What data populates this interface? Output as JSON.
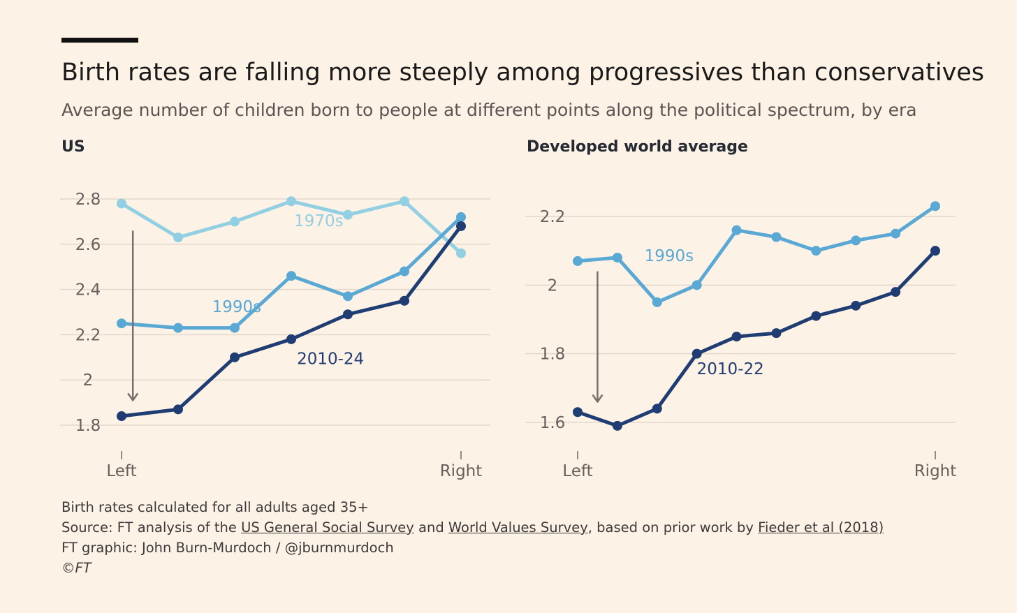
{
  "header": {
    "title": "Birth rates are falling more steeply among progressives than conservatives",
    "subtitle": "Average number of children born to people at different points along the political spectrum, by era"
  },
  "footer": {
    "note": "Birth rates calculated for all adults aged 35+",
    "source_prefix": "Source: FT analysis of the ",
    "source_link1": "US General Social Survey",
    "source_and": " and ",
    "source_link2": "World Values Survey",
    "source_mid": ", based on prior work by ",
    "source_link3": "Fieder et al (2018)",
    "graphic": "FT graphic: John Burn-Murdoch / @jburnmurdoch",
    "copyright": "©FT"
  },
  "colors": {
    "1970s": "#93cfe3",
    "1990s": "#5aa8d4",
    "2010s": "#1f3d72",
    "arrow": "#77706b",
    "grid": "#e3d8cc"
  },
  "chart_data": [
    {
      "type": "line",
      "title": "US",
      "x": [
        1,
        2,
        3,
        4,
        5,
        6,
        7
      ],
      "xticks": [
        {
          "x": 1,
          "label": "Left"
        },
        {
          "x": 7,
          "label": "Right"
        }
      ],
      "yticks": [
        1.8,
        2,
        2.2,
        2.4,
        2.6,
        2.8
      ],
      "ytick_labels": [
        "1.8",
        "2",
        "2.2",
        "2.4",
        "2.6",
        "2.8"
      ],
      "ylim": [
        1.75,
        2.83
      ],
      "grid": true,
      "series": [
        {
          "name": "1970s",
          "label_pos": {
            "x": 4.05,
            "y": 2.68
          },
          "values": [
            2.78,
            2.63,
            2.7,
            2.79,
            2.73,
            2.79,
            2.56
          ]
        },
        {
          "name": "1990s",
          "label_pos": {
            "x": 2.6,
            "y": 2.3
          },
          "values": [
            2.25,
            2.23,
            2.23,
            2.46,
            2.37,
            2.48,
            2.72
          ]
        },
        {
          "name": "2010-24",
          "label_pos": {
            "x": 4.1,
            "y": 2.07
          },
          "values": [
            1.84,
            1.87,
            2.1,
            2.18,
            2.29,
            2.35,
            2.68
          ]
        }
      ],
      "arrow": {
        "x": 1.2,
        "from": 2.66,
        "to": 1.91
      }
    },
    {
      "type": "line",
      "title": "Developed world average",
      "x": [
        1,
        2,
        3,
        4,
        5,
        6,
        7,
        8,
        9,
        10
      ],
      "xticks": [
        {
          "x": 1,
          "label": "Left"
        },
        {
          "x": 10,
          "label": "Right"
        }
      ],
      "yticks": [
        1.6,
        1.8,
        2,
        2.2
      ],
      "ytick_labels": [
        "1.6",
        "1.8",
        "2",
        "2.2"
      ],
      "ylim": [
        1.55,
        2.25
      ],
      "grid": true,
      "series": [
        {
          "name": "1990s",
          "label_pos": {
            "x": 2.68,
            "y": 2.07
          },
          "values": [
            2.07,
            2.08,
            1.95,
            2.0,
            2.16,
            2.14,
            2.1,
            2.13,
            2.15,
            2.23
          ]
        },
        {
          "name": "2010-22",
          "label_pos": {
            "x": 4.0,
            "y": 1.74
          },
          "values": [
            1.63,
            1.59,
            1.64,
            1.8,
            1.85,
            1.86,
            1.91,
            1.94,
            1.98,
            2.1
          ]
        }
      ],
      "arrow": {
        "x": 1.5,
        "from": 2.04,
        "to": 1.66
      }
    }
  ]
}
